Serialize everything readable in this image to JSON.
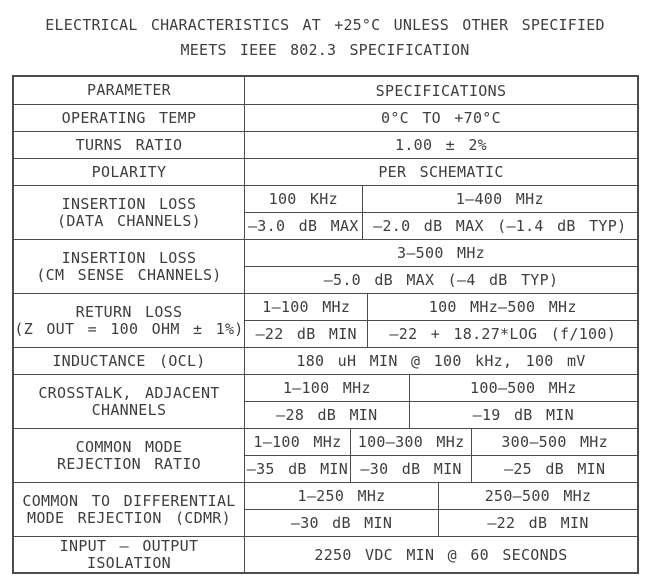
{
  "colors": {
    "ink": "#3e3e3e",
    "line": "#4c4c4c",
    "background": "#ffffff"
  },
  "title": {
    "line1": "ELECTRICAL CHARACTERISTICS AT +25°C UNLESS OTHER SPECIFIED",
    "line2": "MEETS IEEE 802.3 SPECIFICATION"
  },
  "table": {
    "header": {
      "param": "PARAMETER",
      "spec": "SPECIFICATIONS"
    },
    "operating_temp": {
      "param": "OPERATING TEMP",
      "value": "0°C TO +70°C"
    },
    "turns_ratio": {
      "param": "TURNS RATIO",
      "value": "1.00 ± 2%"
    },
    "polarity": {
      "param": "POLARITY",
      "value": "PER SCHEMATIC"
    },
    "insertion_loss_data": {
      "param": "INSERTION LOSS\n(DATA CHANNELS)",
      "freq": [
        "100 KHz",
        "1–400 MHz"
      ],
      "spec": [
        "–3.0 dB MAX",
        "–2.0 dB MAX (–1.4 dB TYP)"
      ]
    },
    "insertion_loss_cm": {
      "param": "INSERTION LOSS\n(CM SENSE CHANNELS)",
      "freq": [
        "3–500 MHz"
      ],
      "spec": [
        "–5.0 dB MAX (–4 dB TYP)"
      ]
    },
    "return_loss": {
      "param": "RETURN LOSS\n(Z OUT = 100 OHM ± 1%)",
      "freq": [
        "1–100 MHz",
        "100 MHz–500 MHz"
      ],
      "spec": [
        "–22 dB MIN",
        "–22 + 18.27*LOG (f/100)"
      ]
    },
    "inductance": {
      "param": "INDUCTANCE (OCL)",
      "value": "180 uH MIN @ 100 kHz, 100 mV"
    },
    "crosstalk": {
      "param": "CROSSTALK, ADJACENT\nCHANNELS",
      "freq": [
        "1–100 MHz",
        "100–500 MHz"
      ],
      "spec": [
        "–28 dB MIN",
        "–19 dB MIN"
      ]
    },
    "cmrr": {
      "param": "COMMON MODE\nREJECTION RATIO",
      "freq": [
        "1–100 MHz",
        "100–300 MHz",
        "300–500 MHz"
      ],
      "spec": [
        "–35 dB MIN",
        "–30 dB MIN",
        "–25 dB MIN"
      ]
    },
    "cdmr": {
      "param": "COMMON TO DIFFERENTIAL\nMODE REJECTION (CDMR)",
      "freq": [
        "1–250 MHz",
        "250–500 MHz"
      ],
      "spec": [
        "–30 dB MIN",
        "–22 dB MIN"
      ]
    },
    "isolation": {
      "param": "INPUT – OUTPUT\nISOLATION",
      "value": "2250 VDC MIN @ 60 SECONDS"
    }
  }
}
